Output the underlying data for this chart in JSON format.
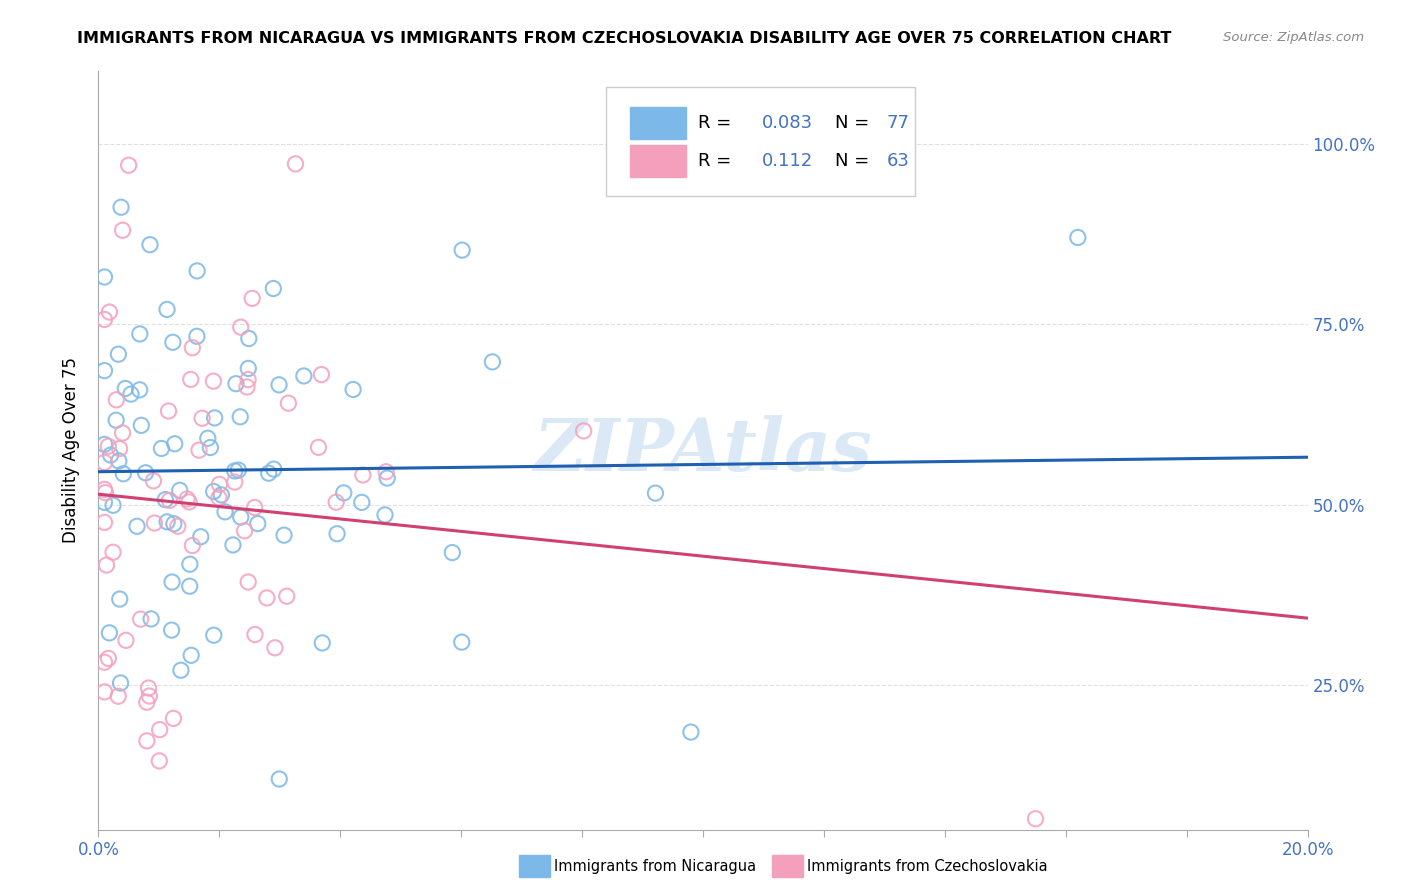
{
  "title": "IMMIGRANTS FROM NICARAGUA VS IMMIGRANTS FROM CZECHOSLOVAKIA DISABILITY AGE OVER 75 CORRELATION CHART",
  "source": "Source: ZipAtlas.com",
  "ylabel": "Disability Age Over 75",
  "yticks": [
    0.25,
    0.5,
    0.75,
    1.0
  ],
  "ytick_labels": [
    "25.0%",
    "50.0%",
    "75.0%",
    "100.0%"
  ],
  "xlim": [
    0.0,
    0.2
  ],
  "ylim": [
    0.05,
    1.1
  ],
  "r_nicaragua": 0.083,
  "n_nicaragua": 77,
  "r_czechoslovakia": 0.112,
  "n_czechoslovakia": 63,
  "color_nicaragua": "#7cb8e8",
  "color_czechoslovakia": "#f4a0bc",
  "line_color_nicaragua": "#2060b0",
  "line_color_czechoslovakia": "#d04070",
  "watermark": "ZIPAtlas",
  "legend_label_nicaragua": "Immigrants from Nicaragua",
  "legend_label_czechoslovakia": "Immigrants from Czechoslovakia",
  "bg_color": "#ffffff",
  "grid_color": "#cccccc",
  "tick_label_color": "#4472c4"
}
